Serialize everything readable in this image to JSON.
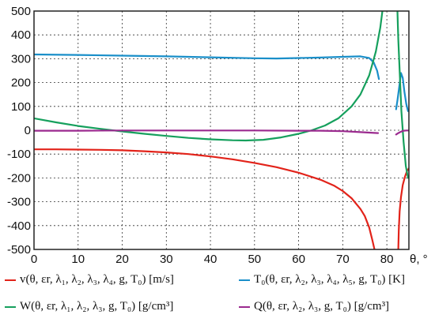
{
  "chart_data": {
    "type": "line",
    "xlim": [
      0,
      85
    ],
    "ylim": [
      -500,
      500
    ],
    "x_ticks": [
      "0",
      "10",
      "20",
      "30",
      "40",
      "50",
      "60",
      "70",
      "80"
    ],
    "y_ticks": [
      "500",
      "400",
      "300",
      "200",
      "100",
      "0",
      "-100",
      "-200",
      "-300",
      "-400",
      "-500"
    ],
    "x_axis_label": "θ, °",
    "grid": true,
    "legend_position": "bottom",
    "series": [
      {
        "name": "v(θ, εr, λ1, λ2, λ3, λ4, g, T0) [m/s]",
        "color": "#e2231a",
        "segments": [
          [
            [
              0,
              -80
            ],
            [
              5,
              -80
            ],
            [
              10,
              -81
            ],
            [
              15,
              -82
            ],
            [
              20,
              -84
            ],
            [
              25,
              -88
            ],
            [
              30,
              -93
            ],
            [
              35,
              -100
            ],
            [
              40,
              -110
            ],
            [
              45,
              -122
            ],
            [
              50,
              -137
            ],
            [
              55,
              -155
            ],
            [
              60,
              -178
            ],
            [
              65,
              -208
            ],
            [
              68,
              -232
            ],
            [
              70,
              -255
            ],
            [
              72,
              -285
            ],
            [
              74,
              -330
            ],
            [
              75,
              -360
            ],
            [
              76,
              -408
            ],
            [
              76.7,
              -460
            ],
            [
              77.2,
              -500
            ]
          ],
          [
            [
              82.6,
              -500
            ],
            [
              82.7,
              -420
            ],
            [
              82.9,
              -340
            ],
            [
              83.2,
              -280
            ],
            [
              83.6,
              -230
            ],
            [
              84.1,
              -195
            ],
            [
              84.6,
              -170
            ],
            [
              85,
              -160
            ]
          ]
        ]
      },
      {
        "name": "T0(θ, εr, λ2, λ3, λ4, λ5, g, T0) [K]",
        "color": "#1a8fc9",
        "segments": [
          [
            [
              0,
              318
            ],
            [
              10,
              316
            ],
            [
              20,
              313
            ],
            [
              30,
              310
            ],
            [
              40,
              306
            ],
            [
              50,
              302
            ],
            [
              55,
              301
            ],
            [
              60,
              303
            ],
            [
              65,
              305
            ],
            [
              70,
              308
            ],
            [
              74,
              310
            ],
            [
              76,
              303
            ],
            [
              77,
              285
            ],
            [
              77.8,
              250
            ],
            [
              78.2,
              215
            ]
          ],
          [
            [
              82.1,
              88
            ],
            [
              82.4,
              125
            ],
            [
              82.8,
              180
            ],
            [
              83.2,
              240
            ],
            [
              83.6,
              220
            ],
            [
              84.0,
              160
            ],
            [
              84.4,
              110
            ],
            [
              84.8,
              80
            ]
          ]
        ]
      },
      {
        "name": "W(θ, εr, λ1, λ2, λ3, g, T0) [g/cm3]",
        "color": "#16a05d",
        "segments": [
          [
            [
              0,
              50
            ],
            [
              5,
              33
            ],
            [
              10,
              18
            ],
            [
              15,
              6
            ],
            [
              20,
              -5
            ],
            [
              25,
              -15
            ],
            [
              30,
              -24
            ],
            [
              35,
              -32
            ],
            [
              40,
              -38
            ],
            [
              45,
              -42
            ],
            [
              48,
              -43
            ],
            [
              52,
              -40
            ],
            [
              56,
              -30
            ],
            [
              60,
              -15
            ],
            [
              63,
              0
            ],
            [
              66,
              20
            ],
            [
              69,
              50
            ],
            [
              72,
              100
            ],
            [
              74,
              150
            ],
            [
              76,
              230
            ],
            [
              77.5,
              330
            ],
            [
              78.5,
              430
            ],
            [
              79,
              500
            ]
          ],
          [
            [
              82.4,
              500
            ],
            [
              82.6,
              380
            ],
            [
              82.9,
              250
            ],
            [
              83.3,
              80
            ],
            [
              83.8,
              -50
            ],
            [
              84.3,
              -150
            ],
            [
              84.8,
              -200
            ]
          ]
        ]
      },
      {
        "name": "Q(θ, εr, λ2, λ3, g, T0) [g/cm3]",
        "color": "#9b2a8f",
        "segments": [
          [
            [
              0,
              -2
            ],
            [
              10,
              -2
            ],
            [
              20,
              -1
            ],
            [
              30,
              -1
            ],
            [
              40,
              -1
            ],
            [
              50,
              -1
            ],
            [
              60,
              -2
            ],
            [
              65,
              -2
            ],
            [
              70,
              -4
            ],
            [
              74,
              -8
            ],
            [
              76,
              -10
            ],
            [
              78,
              -12
            ]
          ],
          [
            [
              82.1,
              -18
            ],
            [
              82.6,
              -12
            ],
            [
              83.2,
              -6
            ],
            [
              83.8,
              -2
            ],
            [
              84.5,
              -1
            ],
            [
              85,
              -1
            ]
          ]
        ]
      }
    ]
  },
  "legend": {
    "v_label": "v(θ, εr, λ₁, λ₂, λ₃, λ₄, g, T₀) [m/s]",
    "t_label": "T₀(θ, εr, λ₂, λ₃, λ₄, λ₅, g, T₀) [K]",
    "w_label": "W(θ, εr, λ₁, λ₂, λ₃, g, T₀) [g/cm³]",
    "q_label": "Q(θ, εr, λ₂, λ₃, g, T₀) [g/cm³]"
  }
}
